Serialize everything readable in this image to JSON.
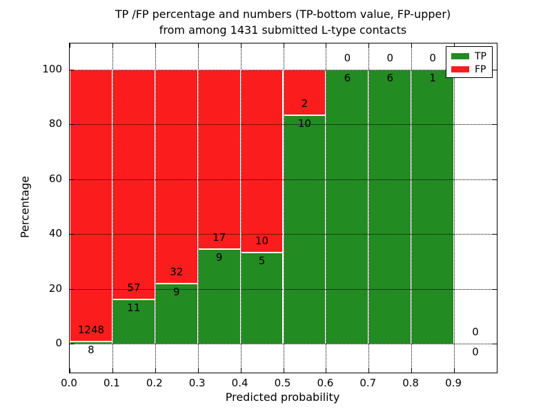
{
  "title": {
    "line1": "TP /FP percentage and numbers (TP-bottom value, FP-upper)",
    "line2": "from among 1431 submitted L-type contacts"
  },
  "axes": {
    "xlabel": "Predicted probability",
    "ylabel": "Percentage",
    "x_tick_labels": [
      "0.0",
      "0.1",
      "0.2",
      "0.3",
      "0.4",
      "0.5",
      "0.6",
      "0.7",
      "0.8",
      "0.9"
    ],
    "y_tick_labels": [
      "0",
      "20",
      "40",
      "60",
      "80",
      "100"
    ]
  },
  "legend": {
    "items": [
      {
        "label": "TP",
        "color": "#228b22"
      },
      {
        "label": "FP",
        "color": "#fb1d1d"
      }
    ]
  },
  "colors": {
    "tp": "#228b22",
    "fp": "#fb1d1d",
    "grid": "#000000",
    "background": "#ffffff"
  },
  "chart_data": {
    "type": "bar",
    "stacked": true,
    "normalized_to_percent": true,
    "title": "TP /FP percentage and numbers (TP-bottom value, FP-upper) from among 1431 submitted L-type contacts",
    "xlabel": "Predicted probability",
    "ylabel": "Percentage",
    "xlim": [
      0.0,
      1.0
    ],
    "ylim_percent": [
      0,
      100
    ],
    "y_ticks": [
      0,
      20,
      40,
      60,
      80,
      100
    ],
    "x_ticks": [
      0.0,
      0.1,
      0.2,
      0.3,
      0.4,
      0.5,
      0.6,
      0.7,
      0.8,
      0.9
    ],
    "grid": true,
    "legend_position": "upper right",
    "total_contacts": 1431,
    "bin_width": 0.1,
    "bins": [
      {
        "range": "0.0-0.1",
        "tp": 8,
        "fp": 1248
      },
      {
        "range": "0.1-0.2",
        "tp": 11,
        "fp": 57
      },
      {
        "range": "0.2-0.3",
        "tp": 9,
        "fp": 32
      },
      {
        "range": "0.3-0.4",
        "tp": 9,
        "fp": 17
      },
      {
        "range": "0.4-0.5",
        "tp": 5,
        "fp": 10
      },
      {
        "range": "0.5-0.6",
        "tp": 10,
        "fp": 2
      },
      {
        "range": "0.6-0.7",
        "tp": 6,
        "fp": 0
      },
      {
        "range": "0.7-0.8",
        "tp": 6,
        "fp": 0
      },
      {
        "range": "0.8-0.9",
        "tp": 1,
        "fp": 0
      },
      {
        "range": "0.9-1.0",
        "tp": 0,
        "fp": 0
      }
    ]
  }
}
